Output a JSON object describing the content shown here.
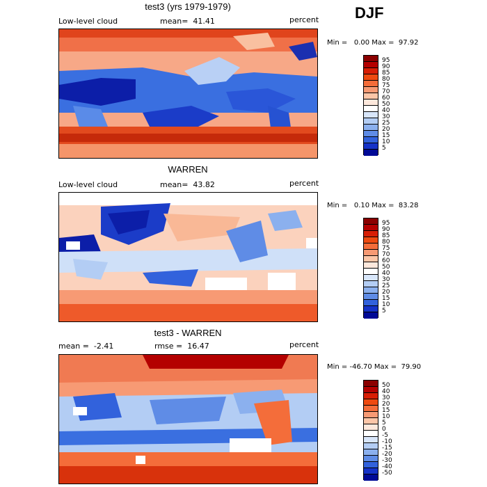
{
  "season": "DJF",
  "panels": [
    {
      "title": "test3 (yrs 1979-1979)",
      "left_label": "Low-level cloud",
      "center_label": "mean=  41.41",
      "units": "percent",
      "minmax": "Min =   0.00 Max =  97.92",
      "colorbar": {
        "labels": [
          "95",
          "90",
          "85",
          "80",
          "75",
          "70",
          "60",
          "50",
          "40",
          "30",
          "25",
          "20",
          "15",
          "10",
          "5"
        ],
        "colors": [
          "#8b0000",
          "#b40000",
          "#d81e05",
          "#ee4a10",
          "#f46d3a",
          "#f79a74",
          "#fcc6a8",
          "#fde8dc",
          "#ffffff",
          "#d8e6fa",
          "#b3cdf4",
          "#8bb0ee",
          "#5f8ce6",
          "#3262dc",
          "#1532c8",
          "#000a96"
        ]
      }
    },
    {
      "title": "WARREN",
      "left_label": "Low-level cloud",
      "center_label": "mean=  43.82",
      "units": "percent",
      "minmax": "Min =   0.10 Max =  83.28",
      "colorbar": {
        "labels": [
          "95",
          "90",
          "85",
          "80",
          "75",
          "70",
          "60",
          "50",
          "40",
          "30",
          "25",
          "20",
          "15",
          "10",
          "5"
        ],
        "colors": [
          "#8b0000",
          "#b40000",
          "#d81e05",
          "#ee4a10",
          "#f46d3a",
          "#f79a74",
          "#fcc6a8",
          "#fde8dc",
          "#ffffff",
          "#d8e6fa",
          "#b3cdf4",
          "#8bb0ee",
          "#5f8ce6",
          "#3262dc",
          "#1532c8",
          "#000a96"
        ]
      }
    },
    {
      "title": "test3 - WARREN",
      "left_label": "mean =  -2.41",
      "center_label": "rmse =  16.47",
      "units": "percent",
      "minmax": "Min = -46.70 Max =  79.90",
      "colorbar": {
        "labels": [
          "50",
          "40",
          "30",
          "20",
          "15",
          "10",
          "5",
          "0",
          "-5",
          "-10",
          "-15",
          "-20",
          "-30",
          "-40",
          "-50"
        ],
        "colors": [
          "#8b0000",
          "#b40000",
          "#d81e05",
          "#ee4a10",
          "#f46d3a",
          "#f79a74",
          "#fcc6a8",
          "#fde8dc",
          "#ffffff",
          "#d8e6fa",
          "#b3cdf4",
          "#8bb0ee",
          "#5f8ce6",
          "#3262dc",
          "#1532c8",
          "#000a96"
        ]
      }
    }
  ]
}
